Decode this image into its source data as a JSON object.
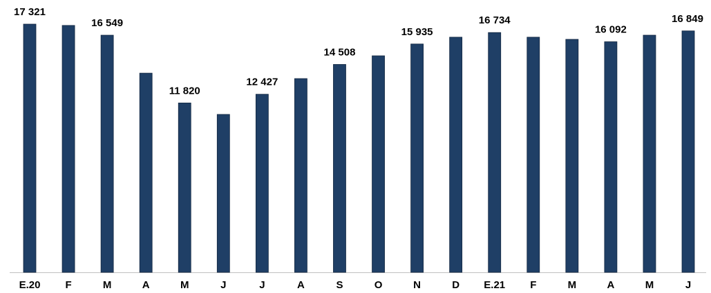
{
  "chart_data": {
    "type": "bar",
    "categories": [
      "E.20",
      "F",
      "M",
      "A",
      "M",
      "J",
      "J",
      "A",
      "S",
      "O",
      "N",
      "D",
      "E.21",
      "F",
      "M",
      "A",
      "M",
      "J"
    ],
    "values": [
      17321,
      17230,
      16549,
      13900,
      11820,
      11020,
      12427,
      13520,
      14508,
      15110,
      15935,
      16410,
      16734,
      16410,
      16260,
      16092,
      16550,
      16849
    ],
    "value_labels": [
      "17 321",
      null,
      "16 549",
      null,
      "11 820",
      null,
      "12 427",
      null,
      "14 508",
      null,
      "15 935",
      null,
      "16 734",
      null,
      null,
      "16 092",
      null,
      "16 849"
    ],
    "color": "#1f3f66"
  }
}
